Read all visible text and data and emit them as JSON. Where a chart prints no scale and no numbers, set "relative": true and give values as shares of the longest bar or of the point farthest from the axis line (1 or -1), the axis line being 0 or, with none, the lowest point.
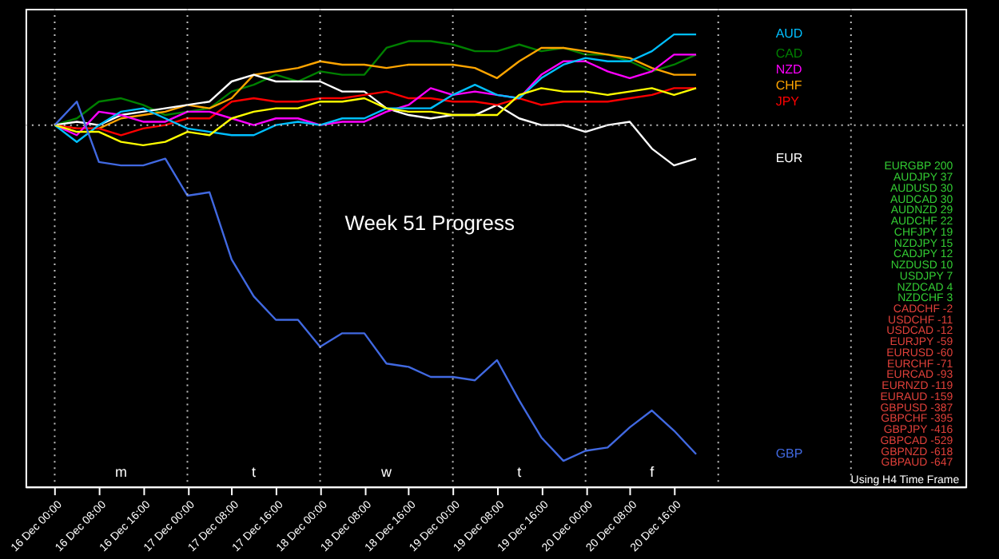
{
  "chart_data": {
    "type": "line",
    "title": "Week 51 Progress",
    "relative": true,
    "categories": [
      "16 Dec 00:00",
      null,
      "16 Dec 08:00",
      null,
      "16 Dec 16:00",
      null,
      "17 Dec 00:00",
      null,
      "17 Dec 08:00",
      null,
      "17 Dec 16:00",
      null,
      "18 Dec 00:00",
      null,
      "18 Dec 08:00",
      null,
      "18 Dec 16:00",
      null,
      "19 Dec 00:00",
      null,
      "19 Dec 08:00",
      null,
      "19 Dec 16:00",
      null,
      "20 Dec 00:00",
      null,
      "20 Dec 08:00",
      null,
      "20 Dec 16:00",
      null
    ],
    "tick_labels": "x",
    "grid": false,
    "legend": false,
    "line_style": "solid",
    "marker": "none",
    "series": [
      {
        "name": "CAD",
        "color": "#008000",
        "values": [
          0,
          0.02,
          0.07,
          0.08,
          0.06,
          0.03,
          0.04,
          0.05,
          0.1,
          0.12,
          0.15,
          0.13,
          0.16,
          0.15,
          0.15,
          0.23,
          0.25,
          0.25,
          0.24,
          0.22,
          0.22,
          0.24,
          0.22,
          0.23,
          0.21,
          0.21,
          0.19,
          0.16,
          0.18,
          0.21
        ]
      },
      {
        "name": "CHF",
        "color": "#ffa500",
        "values": [
          0,
          -0.01,
          -0.01,
          0.02,
          0.03,
          0.04,
          0.06,
          0.05,
          0.08,
          0.15,
          0.16,
          0.17,
          0.19,
          0.18,
          0.18,
          0.17,
          0.18,
          0.18,
          0.18,
          0.17,
          0.14,
          0.19,
          0.23,
          0.23,
          0.22,
          0.21,
          0.2,
          0.17,
          0.15,
          0.15
        ]
      },
      {
        "name": "EUR",
        "color": "#ffffff",
        "values": [
          0,
          0.01,
          0,
          0.03,
          0.04,
          0.05,
          0.06,
          0.07,
          0.13,
          0.15,
          0.13,
          0.13,
          0.13,
          0.1,
          0.1,
          0.05,
          0.03,
          0.02,
          0.03,
          0.03,
          0.06,
          0.02,
          0,
          0,
          -0.02,
          0,
          0.01,
          -0.07,
          -0.12,
          -0.1
        ]
      },
      {
        "name": "JPY",
        "color": "#ff0000",
        "values": [
          0,
          -0.01,
          -0.01,
          -0.03,
          -0.01,
          0,
          0.02,
          0.02,
          0.07,
          0.08,
          0.07,
          0.07,
          0.08,
          0.08,
          0.09,
          0.1,
          0.08,
          0.08,
          0.07,
          0.07,
          0.06,
          0.08,
          0.06,
          0.07,
          0.07,
          0.07,
          0.08,
          0.09,
          0.11,
          0.11
        ]
      },
      {
        "name": "NZD",
        "color": "#ff00ff",
        "values": [
          0,
          -0.03,
          0.04,
          0.03,
          0.01,
          0.01,
          0.04,
          0.04,
          0.02,
          0,
          0.02,
          0.02,
          0,
          0.01,
          0.01,
          0.04,
          0.06,
          0.11,
          0.09,
          0.1,
          0.09,
          0.08,
          0.15,
          0.19,
          0.19,
          0.16,
          0.14,
          0.16,
          0.21,
          0.21
        ]
      },
      {
        "name": "AUD",
        "color": "#00bfff",
        "values": [
          0,
          -0.05,
          0,
          0.04,
          0.05,
          0.02,
          -0.01,
          -0.02,
          -0.03,
          -0.03,
          0,
          0.01,
          0,
          0.02,
          0.02,
          0.05,
          0.05,
          0.05,
          0.09,
          0.12,
          0.09,
          0.08,
          0.14,
          0.18,
          0.2,
          0.19,
          0.19,
          0.22,
          0.27,
          0.27
        ]
      },
      {
        "color": "#ffff00",
        "values": [
          0,
          -0.02,
          -0.02,
          -0.05,
          -0.06,
          -0.05,
          -0.02,
          -0.03,
          0.02,
          0.04,
          0.05,
          0.05,
          0.07,
          0.07,
          0.08,
          0.05,
          0.04,
          0.04,
          0.03,
          0.03,
          0.03,
          0.09,
          0.11,
          0.1,
          0.1,
          0.09,
          0.1,
          0.11,
          0.09,
          0.11
        ]
      },
      {
        "name": "GBP",
        "color": "#4169e1",
        "values": [
          0,
          0.07,
          -0.11,
          -0.12,
          -0.12,
          -0.1,
          -0.21,
          -0.2,
          -0.4,
          -0.51,
          -0.58,
          -0.58,
          -0.66,
          -0.62,
          -0.62,
          -0.71,
          -0.72,
          -0.75,
          -0.75,
          -0.76,
          -0.7,
          -0.82,
          -0.93,
          -1,
          -0.97,
          -0.96,
          -0.9,
          -0.85,
          -0.91,
          -0.98
        ]
      }
    ],
    "ref_lines": [
      {
        "axis": "y",
        "value": 0,
        "color": "#c0c0c0",
        "line_style": "dotted"
      },
      {
        "axis": "x",
        "value": "16 Dec 00:00",
        "color": "#c0c0c0",
        "line_style": "dotted"
      },
      {
        "axis": "x",
        "value": "17 Dec 00:00",
        "color": "#c0c0c0",
        "line_style": "dotted"
      },
      {
        "axis": "x",
        "value": "18 Dec 00:00",
        "color": "#c0c0c0",
        "line_style": "dotted"
      },
      {
        "axis": "x",
        "value": "19 Dec 00:00",
        "color": "#c0c0c0",
        "line_style": "dotted"
      },
      {
        "axis": "x",
        "value": "20 Dec 00:00",
        "color": "#c0c0c0",
        "line_style": "dotted"
      }
    ],
    "annotations": [
      "m",
      "t",
      "w",
      "t",
      "f",
      "EURGBP 200",
      "AUDJPY 37",
      "AUDUSD 30",
      "AUDCAD 30",
      "AUDNZD 29",
      "AUDCHF 22",
      "CHFJPY 19",
      "NZDJPY 15",
      "CADJPY 12",
      "NZDUSD 10",
      "USDJPY 7",
      "NZDCAD 4",
      "NZDCHF 3",
      "CADCHF -2",
      "USDCHF -11",
      "USDCAD -12",
      "EURJPY -59",
      "EURUSD -60",
      "EURCHF -71",
      "EURCAD -93",
      "EURNZD -119",
      "EURAUD -159",
      "GBPUSD -387",
      "GBPCHF -395",
      "GBPJPY -416",
      "GBPCAD -529",
      "GBPNZD -618",
      "GBPAUD -647",
      "Using H4 Time Frame"
    ]
  }
}
